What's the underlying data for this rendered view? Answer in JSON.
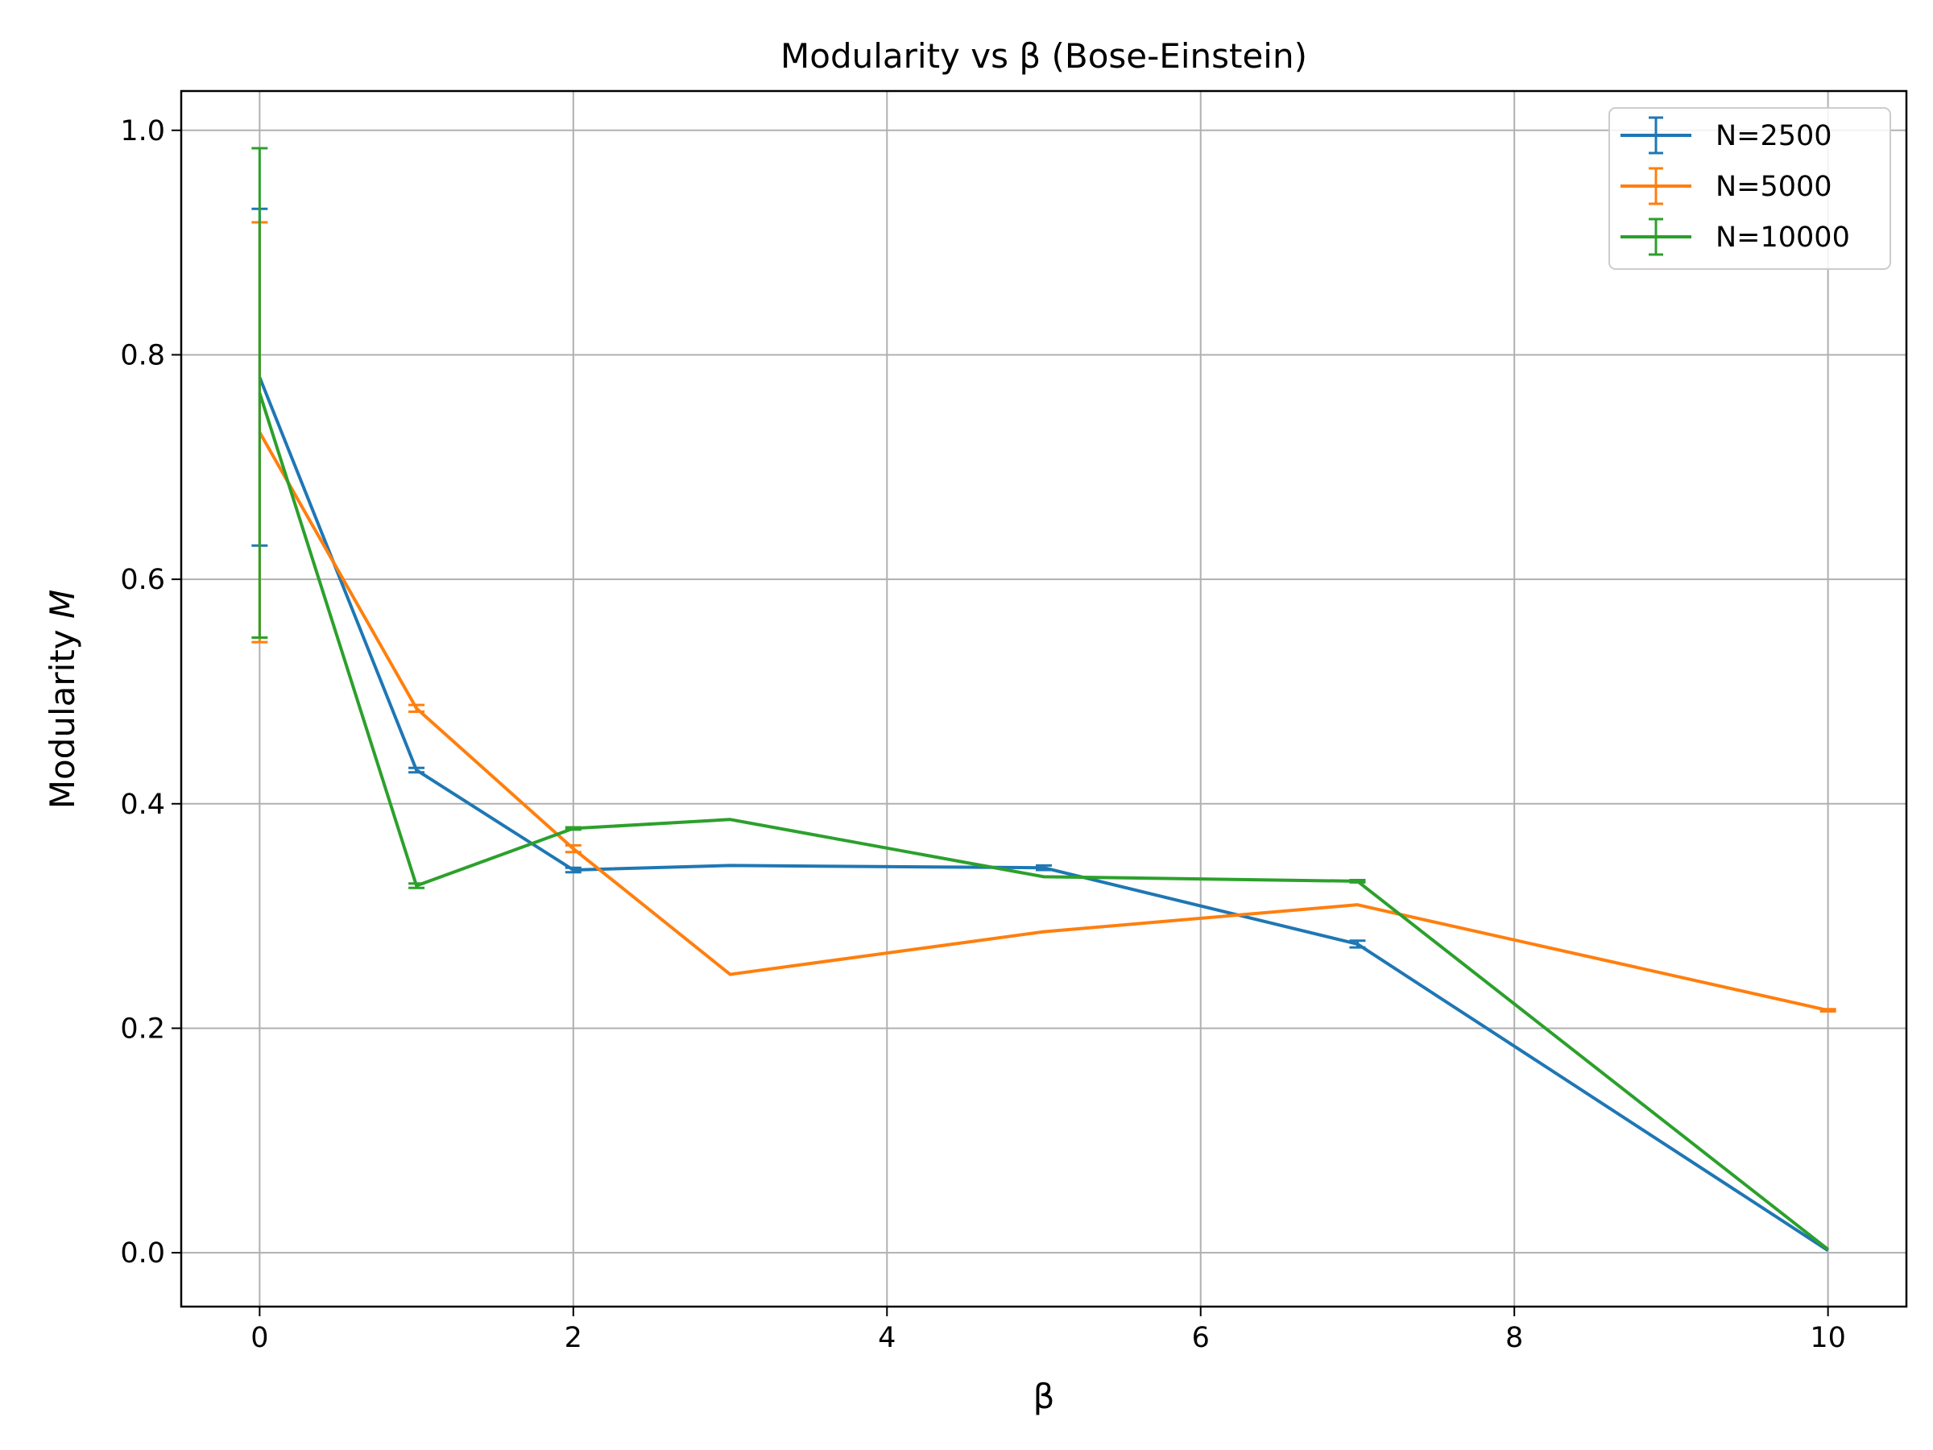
{
  "chart_data": {
    "type": "line",
    "title": "Modularity vs β (Bose-Einstein)",
    "xlabel": "β",
    "ylabel": "Modularity",
    "ylabel_symbol": "M",
    "xlim": [
      -0.5,
      10.5
    ],
    "ylim": [
      -0.048,
      1.035
    ],
    "xticks": [
      0,
      2,
      4,
      6,
      8,
      10
    ],
    "xtick_labels": [
      "0",
      "2",
      "4",
      "6",
      "8",
      "10"
    ],
    "yticks": [
      0.0,
      0.2,
      0.4,
      0.6,
      0.8,
      1.0
    ],
    "ytick_labels": [
      "0.0",
      "0.2",
      "0.4",
      "0.6",
      "0.8",
      "1.0"
    ],
    "grid": true,
    "legend_position": "top-right",
    "x": [
      0,
      1,
      2,
      3,
      5,
      7,
      10
    ],
    "series": [
      {
        "name": "N=2500",
        "color": "#1f77b4",
        "values": [
          0.78,
          0.43,
          0.341,
          0.345,
          0.343,
          0.275,
          0.002
        ],
        "errors": [
          0.15,
          0.002,
          0.002,
          0.0,
          0.002,
          0.003,
          0.0
        ]
      },
      {
        "name": "N=5000",
        "color": "#ff7f0e",
        "values": [
          0.731,
          0.485,
          0.36,
          0.248,
          0.286,
          0.31,
          0.216
        ],
        "errors": [
          0.187,
          0.003,
          0.003,
          0.0,
          0.0,
          0.0,
          0.001
        ]
      },
      {
        "name": "N=10000",
        "color": "#2ca02c",
        "values": [
          0.766,
          0.327,
          0.378,
          0.386,
          0.335,
          0.331,
          0.003
        ],
        "errors": [
          0.218,
          0.002,
          0.001,
          0.0,
          0.0,
          0.001,
          0.0
        ]
      }
    ]
  }
}
